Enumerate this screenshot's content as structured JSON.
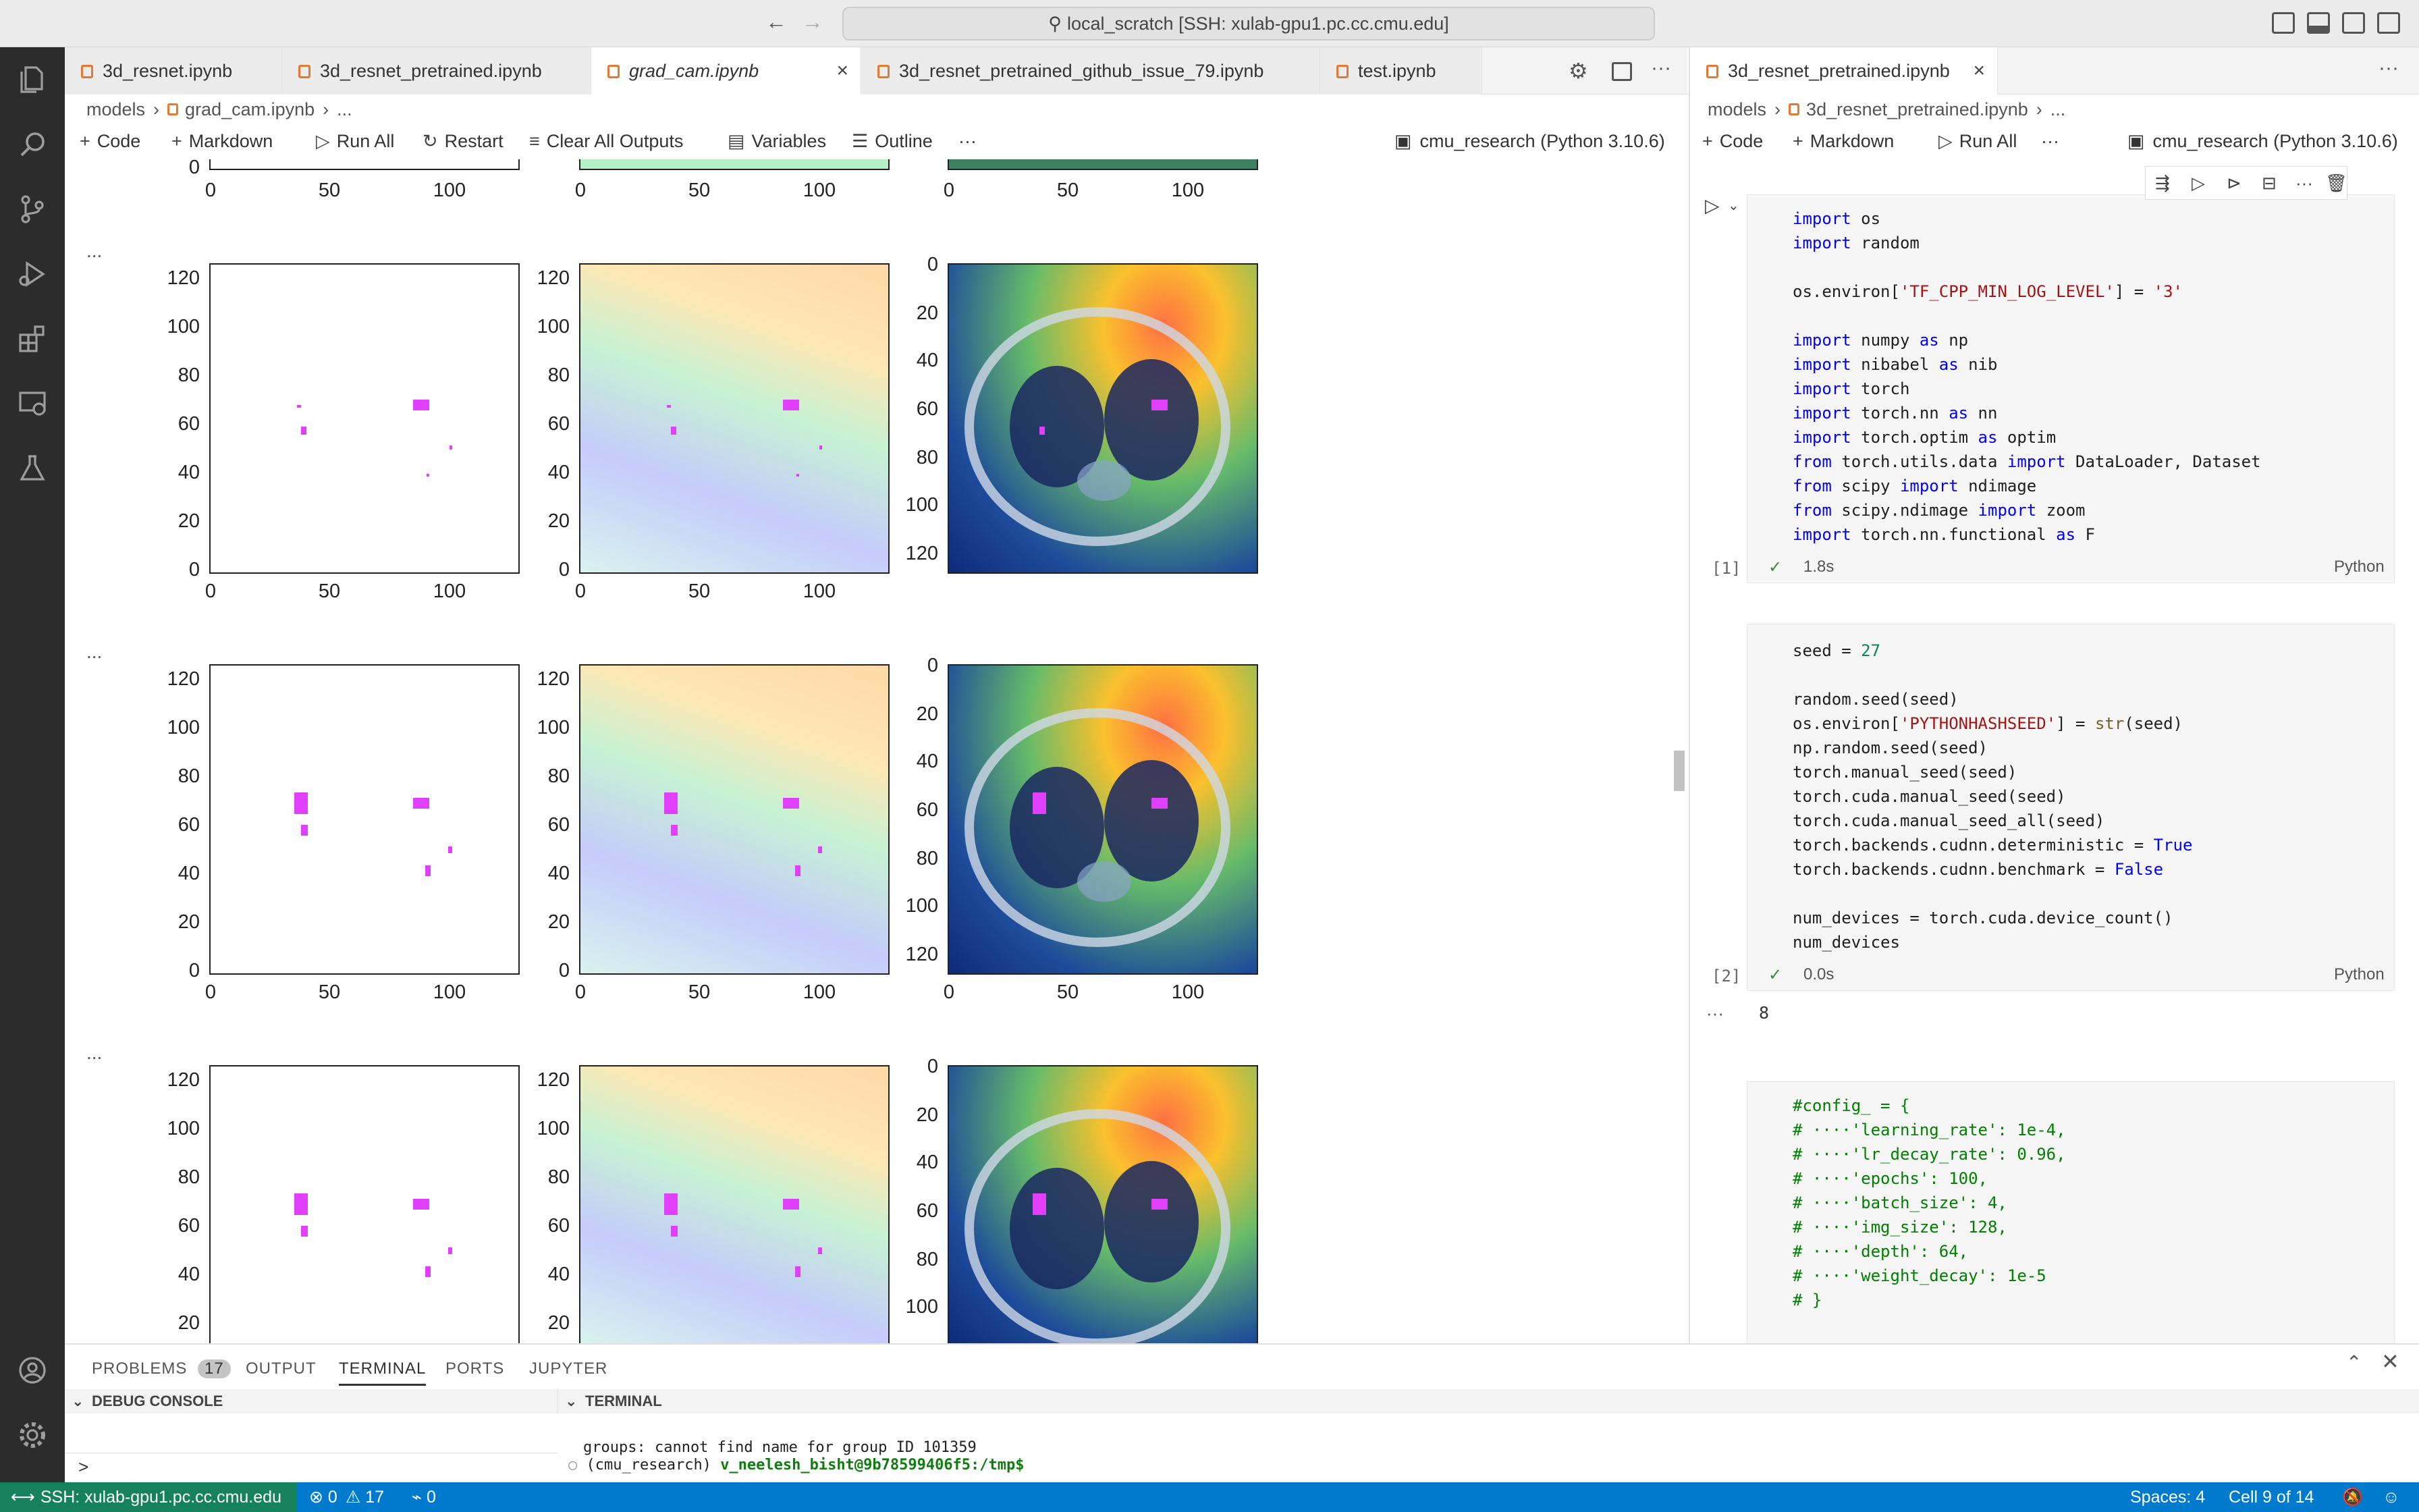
{
  "titlebar": {
    "back": "←",
    "forward": "→",
    "command_center": "local_scratch [SSH: xulab-gpu1.pc.cc.cmu.edu]"
  },
  "tabs_left": [
    {
      "label": "3d_resnet.ipynb"
    },
    {
      "label": "3d_resnet_pretrained.ipynb"
    },
    {
      "label": "grad_cam.ipynb",
      "close": "×"
    },
    {
      "label": "3d_resnet_pretrained_github_issue_79.ipynb"
    },
    {
      "label": "test.ipynb"
    }
  ],
  "breadcrumb_left": {
    "root": "models",
    "file": "grad_cam.ipynb",
    "more": "..."
  },
  "toolbar_left": {
    "code": "Code",
    "markdown": "Markdown",
    "run_all": "Run All",
    "restart": "Restart",
    "clear": "Clear All Outputs",
    "variables": "Variables",
    "outline": "Outline",
    "more": "···"
  },
  "kernel_left": "cmu_research (Python 3.10.6)",
  "output_ellipsis": "...",
  "axes": {
    "x_ticks": [
      "0",
      "50",
      "100"
    ],
    "y_ticks_left": [
      "120",
      "100",
      "80",
      "60",
      "40",
      "20",
      "0"
    ],
    "y_ticks_ct": [
      "0",
      "20",
      "40",
      "60",
      "80",
      "100",
      "120"
    ],
    "y_ticks_ct_partial": [
      "0",
      "20",
      "40",
      "60",
      "80",
      "100"
    ],
    "y_ticks_partial": [
      "120",
      "100",
      "80",
      "60",
      "40",
      "20"
    ]
  },
  "tabs_right": [
    {
      "label": "3d_resnet_pretrained.ipynb",
      "close": "×"
    }
  ],
  "breadcrumb_right": {
    "root": "models",
    "file": "3d_resnet_pretrained.ipynb",
    "more": "..."
  },
  "toolbar_right": {
    "code": "Code",
    "markdown": "Markdown",
    "run_all": "Run All",
    "more": "···"
  },
  "kernel_right": "cmu_research (Python 3.10.6)",
  "cells": [
    {
      "exec": "[1]",
      "time": "1.8s",
      "lang": "Python"
    },
    {
      "exec": "[2]",
      "time": "0.0s",
      "lang": "Python",
      "output": "8"
    }
  ],
  "panel": {
    "tabs": [
      {
        "label": "PROBLEMS",
        "badge": "17"
      },
      {
        "label": "OUTPUT"
      },
      {
        "label": "TERMINAL"
      },
      {
        "label": "PORTS"
      },
      {
        "label": "JUPYTER"
      }
    ],
    "debug_console": "DEBUG CONSOLE",
    "terminal_title": "TERMINAL",
    "terminal_line1": "groups: cannot find name for group ID 101359",
    "terminal_line2_env": "(cmu_research) ",
    "terminal_line2_prompt": "v_neelesh_bisht@9b78599406f5:/tmp$",
    "console_prompt": ">"
  },
  "statusbar": {
    "remote": "SSH: xulab-gpu1.pc.cc.cmu.edu",
    "errors": "0",
    "warnings": "17",
    "ports": "0",
    "spaces": "Spaces: 4",
    "cell": "Cell 9 of 14"
  }
}
